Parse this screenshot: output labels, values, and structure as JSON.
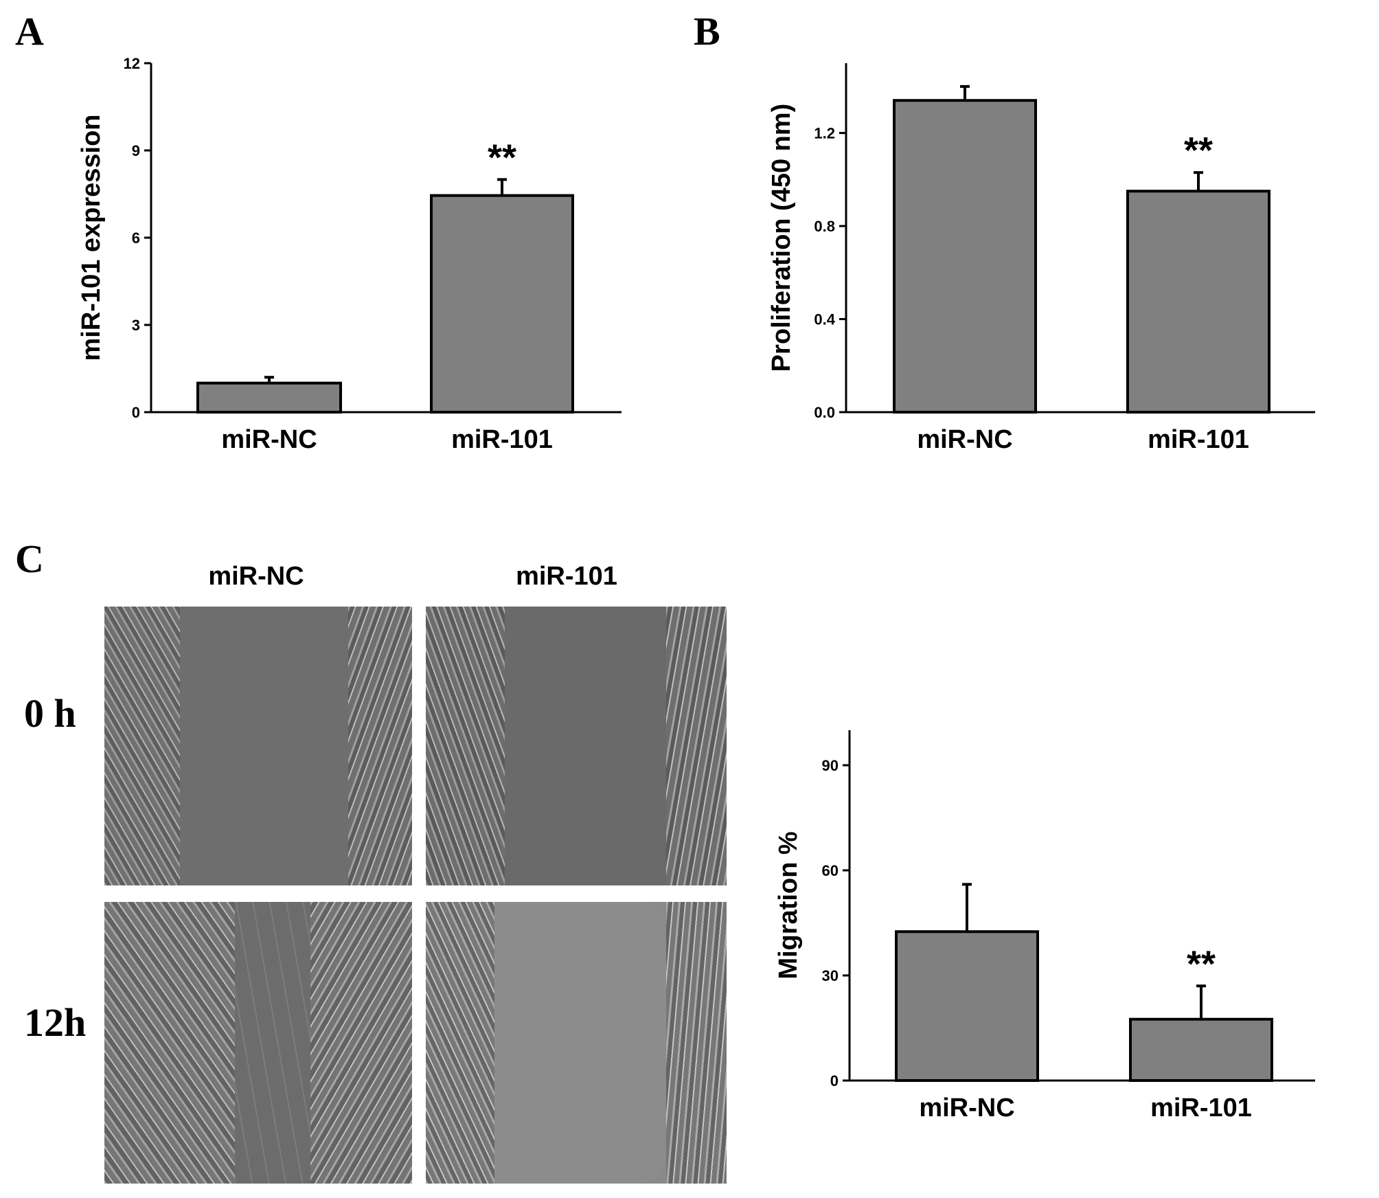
{
  "panels": {
    "a": "A",
    "b": "B",
    "c": "C"
  },
  "micrographs": {
    "col_labels": [
      "miR-NC",
      "miR-101"
    ],
    "row_labels": [
      "0 h",
      "12h"
    ]
  },
  "colors": {
    "bar_fill": "#808080",
    "bar_stroke": "#000000"
  },
  "chart_data": [
    {
      "type": "bar",
      "panel": "A",
      "categories": [
        "miR-NC",
        "miR-101"
      ],
      "values": [
        1.0,
        7.45
      ],
      "errors": [
        0.2,
        0.55
      ],
      "annotations": [
        "",
        "**"
      ],
      "ylabel": "miR-101 expression",
      "ylim": [
        0,
        12
      ],
      "yticks": [
        0,
        3,
        6,
        9,
        12
      ],
      "ytick_labels": [
        "0",
        "3",
        "6",
        "9",
        "12"
      ]
    },
    {
      "type": "bar",
      "panel": "B",
      "categories": [
        "miR-NC",
        "miR-101"
      ],
      "values": [
        1.34,
        0.95
      ],
      "errors": [
        0.06,
        0.08
      ],
      "annotations": [
        "",
        "**"
      ],
      "ylabel": "Proliferation (450 nm)",
      "ylim": [
        0,
        1.5
      ],
      "yticks": [
        0,
        0.4,
        0.8,
        1.2
      ],
      "ytick_labels": [
        "0.0",
        "0.4",
        "0.8",
        "1.2"
      ]
    },
    {
      "type": "bar",
      "panel": "C",
      "categories": [
        "miR-NC",
        "miR-101"
      ],
      "values": [
        42.5,
        17.5
      ],
      "errors": [
        13.5,
        9.5
      ],
      "annotations": [
        "",
        "**"
      ],
      "ylabel": "Migration %",
      "ylim": [
        0,
        100
      ],
      "yticks": [
        0,
        30,
        60,
        90
      ],
      "ytick_labels": [
        "0",
        "30",
        "60",
        "90"
      ]
    }
  ]
}
